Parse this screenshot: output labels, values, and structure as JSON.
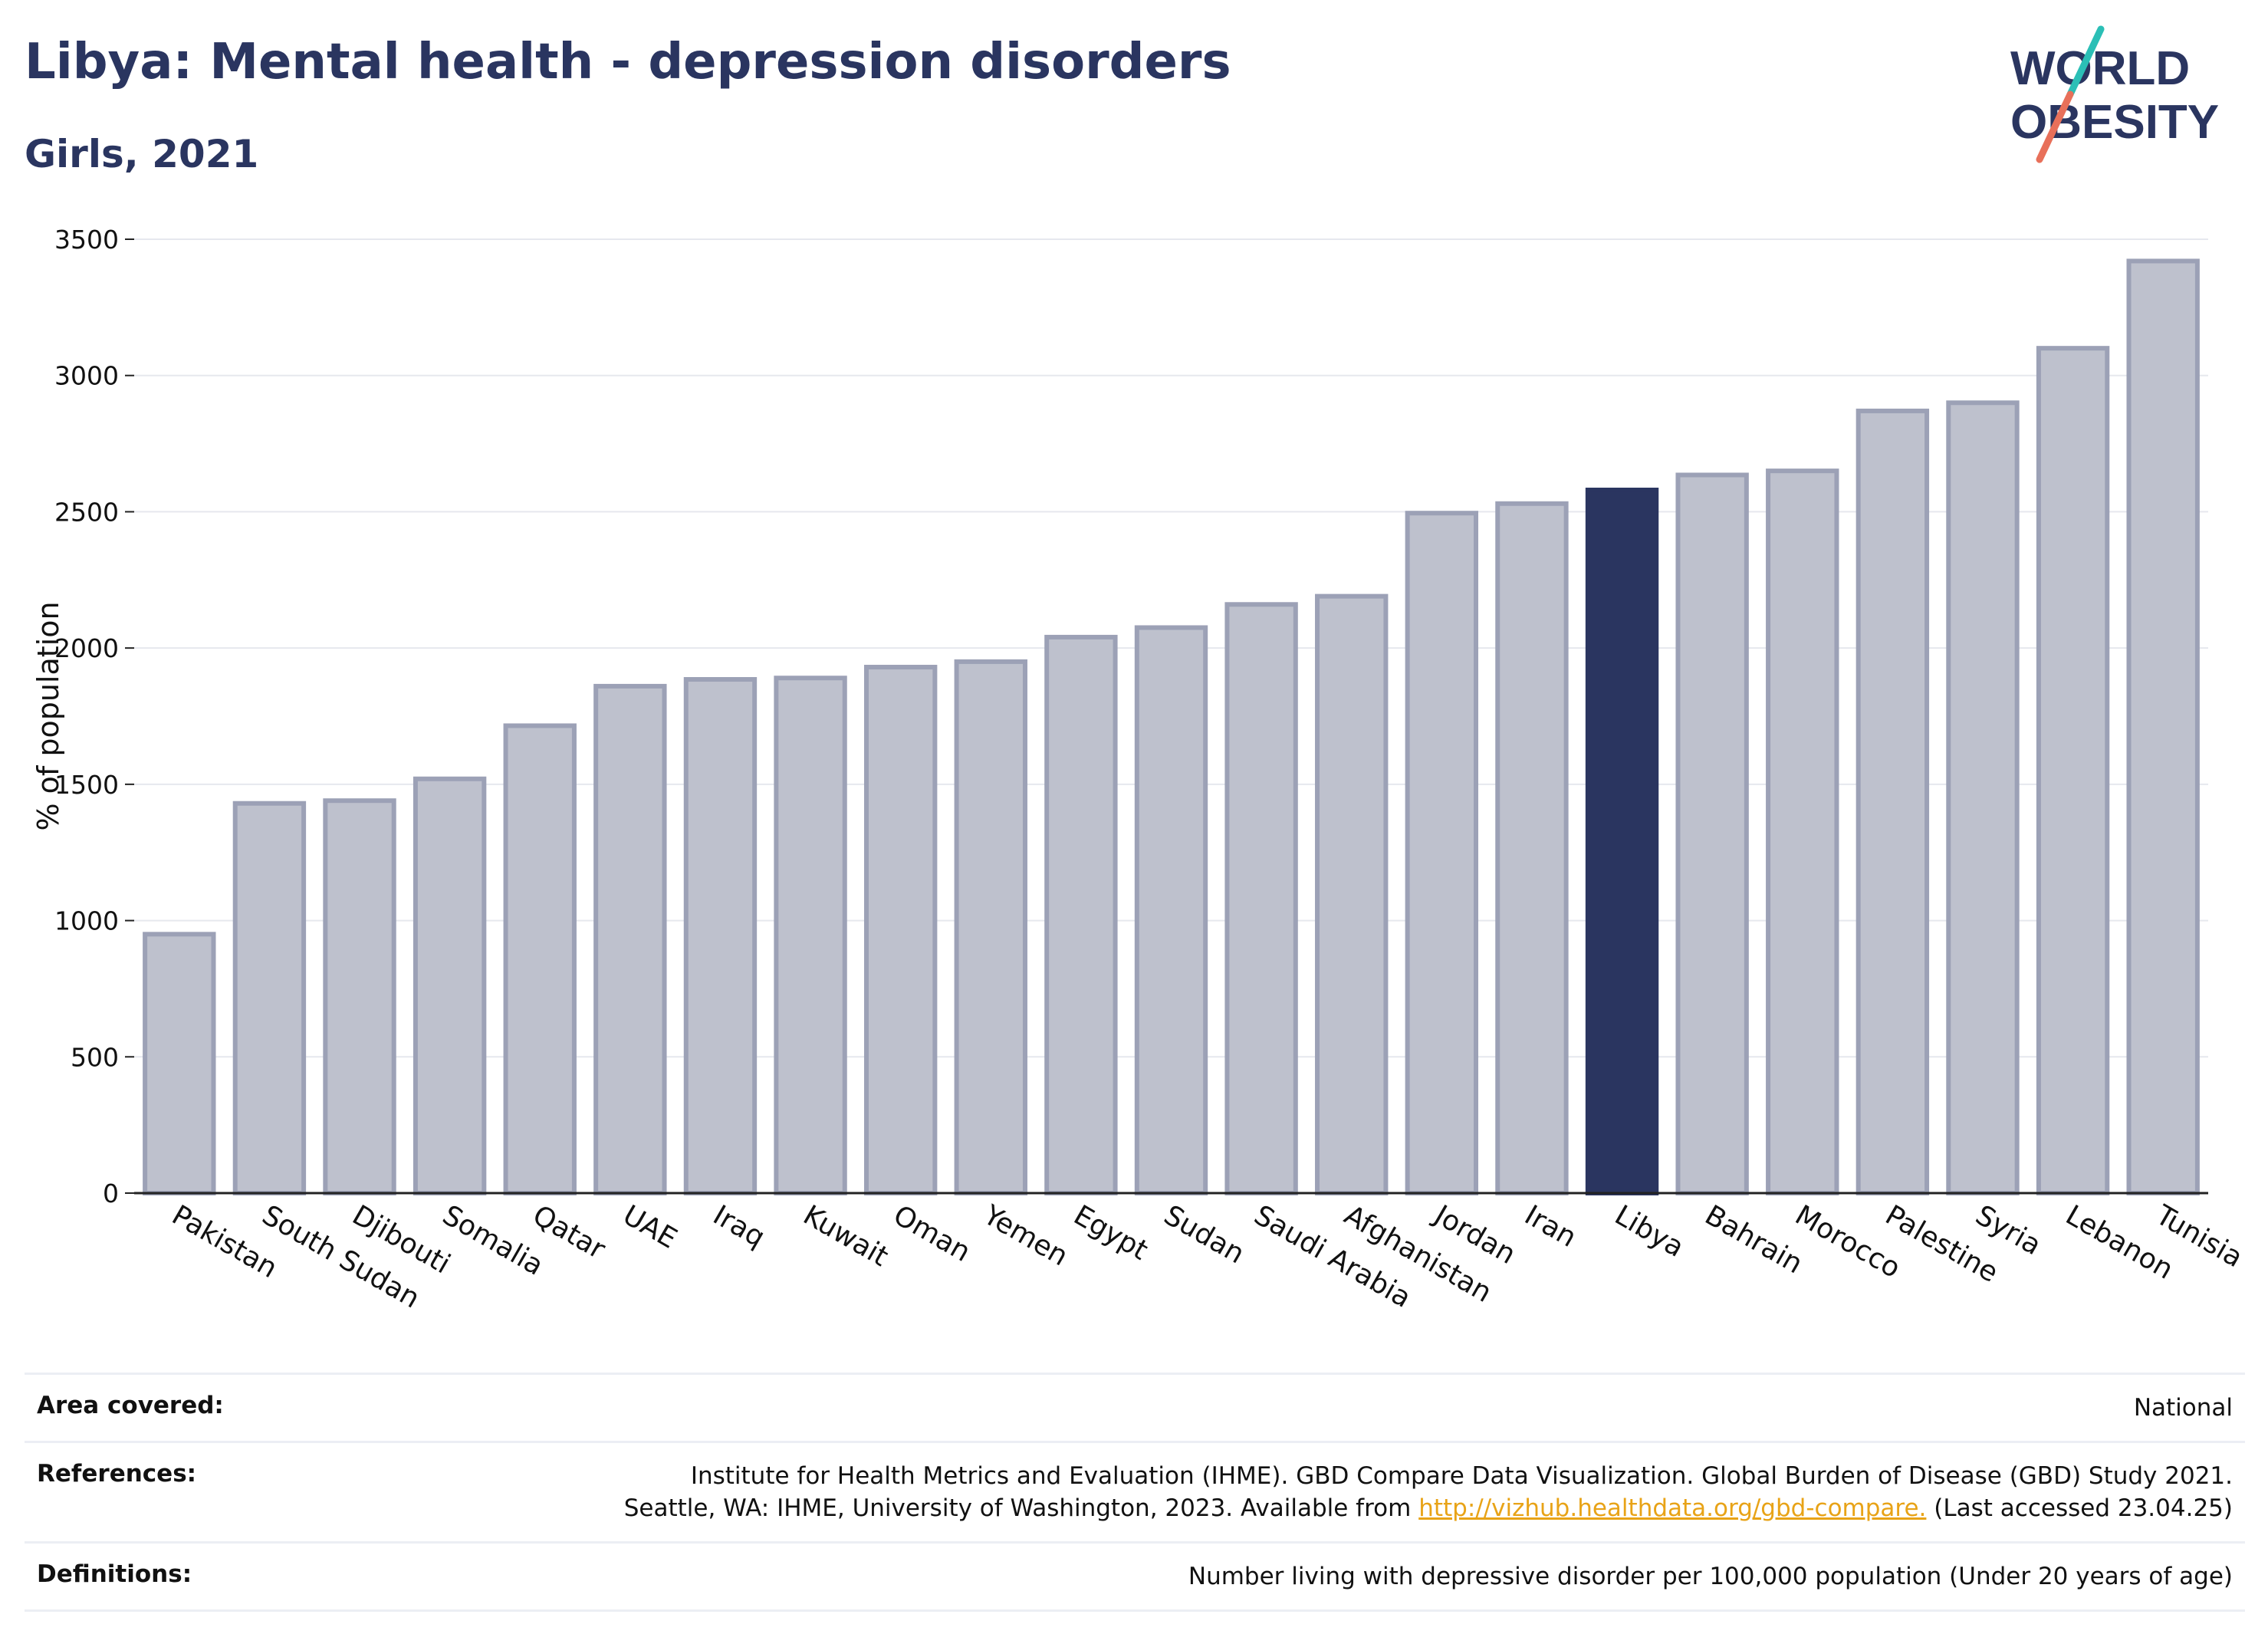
{
  "title": "Libya: Mental health - depression disorders",
  "subtitle": "Girls, 2021",
  "logo": {
    "line1": "WORLD",
    "line2": "OBESITY",
    "accent_teal": "#2bbfb6",
    "accent_coral": "#e8705a",
    "color": "#2a3560"
  },
  "chart_data": {
    "type": "bar",
    "title": "Libya: Mental health - depression disorders",
    "subtitle": "Girls, 2021",
    "xlabel": "",
    "ylabel": "% of population",
    "ylim": [
      0,
      3500
    ],
    "yticks": [
      0,
      500,
      1000,
      1500,
      2000,
      2500,
      3000,
      3500
    ],
    "grid": true,
    "highlight": "Libya",
    "colors": {
      "bar": "#bec1cd",
      "bar_edge": "#9ca1b6",
      "highlight": "#2a3560"
    },
    "categories": [
      "Pakistan",
      "South Sudan",
      "Djibouti",
      "Somalia",
      "Qatar",
      "UAE",
      "Iraq",
      "Kuwait",
      "Oman",
      "Yemen",
      "Egypt",
      "Sudan",
      "Saudi Arabia",
      "Afghanistan",
      "Jordan",
      "Iran",
      "Libya",
      "Bahrain",
      "Morocco",
      "Palestine",
      "Syria",
      "Lebanon",
      "Tunisia"
    ],
    "values": [
      950,
      1430,
      1440,
      1520,
      1715,
      1860,
      1885,
      1890,
      1930,
      1950,
      2040,
      2075,
      2160,
      2190,
      2495,
      2530,
      2580,
      2635,
      2650,
      2870,
      2900,
      3100,
      3420
    ]
  },
  "footer": {
    "area_label": "Area covered:",
    "area_value": "National",
    "references_label": "References:",
    "references_line1": "Institute for Health Metrics and Evaluation (IHME). GBD Compare Data Visualization. Global Burden of Disease (GBD) Study 2021.",
    "references_line2_pre": "Seattle, WA: IHME, University of Washington, 2023. Available from ",
    "references_link": "http://vizhub.healthdata.org/gbd-compare.",
    "references_line2_post": " (Last accessed 23.04.25)",
    "definitions_label": "Definitions:",
    "definitions_value": "Number living with depressive disorder per 100,000 population (Under 20 years of age)"
  }
}
